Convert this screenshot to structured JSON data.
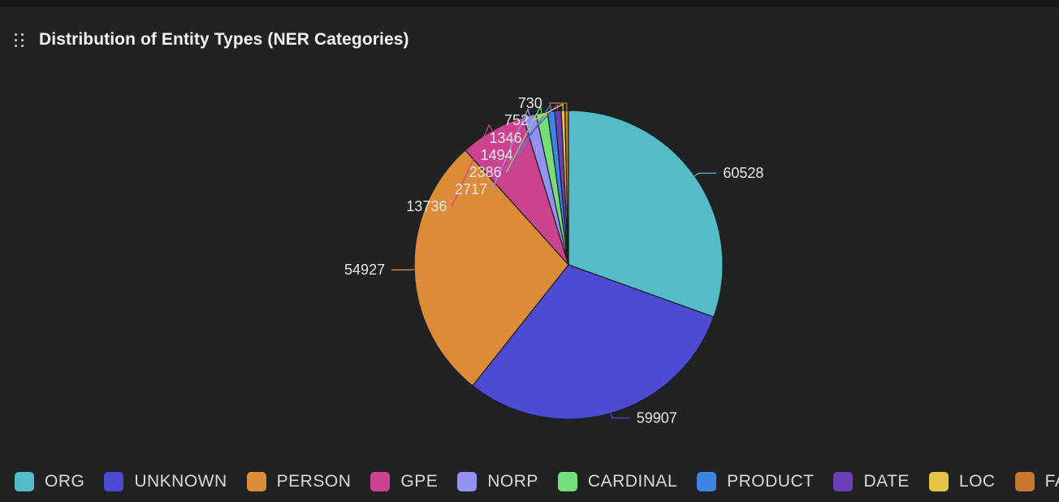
{
  "title": "Distribution of Entity Types (NER Categories)",
  "chart_data": {
    "type": "pie",
    "title": "Distribution of Entity Types (NER Categories)",
    "labels": [
      "ORG",
      "UNKNOWN",
      "PERSON",
      "GPE",
      "NORP",
      "CARDINAL",
      "PRODUCT",
      "DATE",
      "LOC",
      "FAC"
    ],
    "values": [
      60528,
      59907,
      54927,
      13736,
      2717,
      2386,
      1494,
      1346,
      752,
      730
    ],
    "colors": [
      "#53bcc7",
      "#4c4bd2",
      "#dc8b38",
      "#cb438e",
      "#9391f2",
      "#74de7b",
      "#3d84e3",
      "#6b41b8",
      "#e5c443",
      "#c8772f"
    ],
    "legend_position": "bottom-left",
    "start_angle": "12 o'clock",
    "direction": "clockwise"
  },
  "legend": [
    {
      "label": "ORG",
      "color": "#53bcc7"
    },
    {
      "label": "UNKNOWN",
      "color": "#4c4bd2"
    },
    {
      "label": "PERSON",
      "color": "#dc8b38"
    },
    {
      "label": "GPE",
      "color": "#cb438e"
    },
    {
      "label": "NORP",
      "color": "#9391f2"
    },
    {
      "label": "CARDINAL",
      "color": "#74de7b"
    },
    {
      "label": "PRODUCT",
      "color": "#3d84e3"
    },
    {
      "label": "DATE",
      "color": "#6b41b8"
    },
    {
      "label": "LOC",
      "color": "#e5c443"
    },
    {
      "label": "FAC",
      "color": "#c8772f"
    }
  ]
}
